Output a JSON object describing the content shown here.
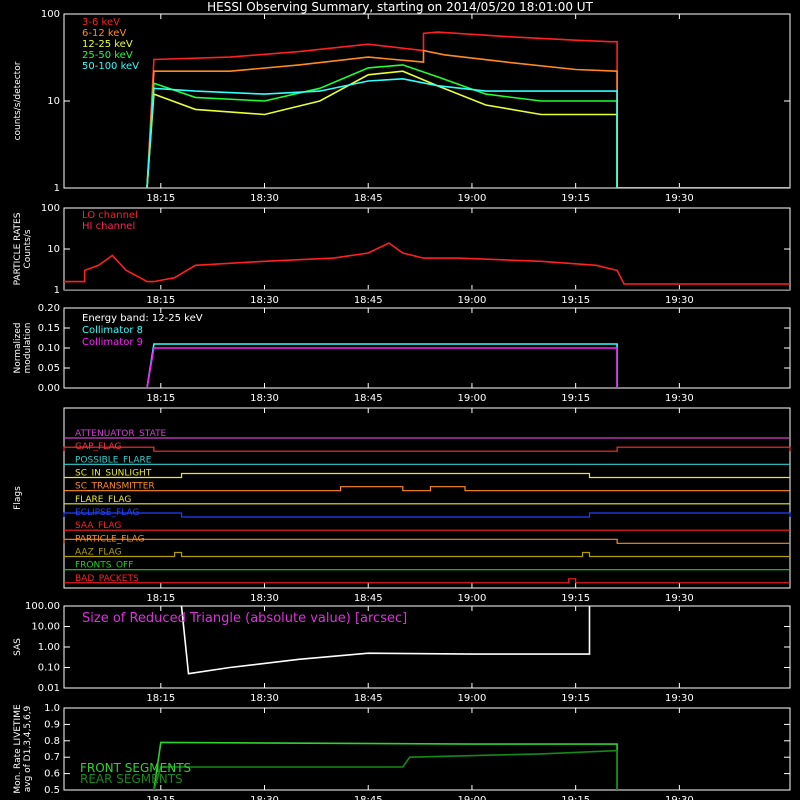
{
  "title": "HESSI Observing Summary, starting on 2014/05/20 18:01:00 UT",
  "time_axis": {
    "start": "18:01",
    "end": "19:46",
    "ticks": [
      "18:15",
      "18:30",
      "18:45",
      "19:00",
      "19:15",
      "19:30"
    ]
  },
  "chart_data": [
    {
      "id": "counts",
      "type": "line",
      "ylabel": "counts/s/detector",
      "yscale": "log",
      "ylim": [
        1,
        100
      ],
      "yticks": [
        "1",
        "10",
        "100"
      ],
      "series": [
        {
          "name": "3-6 keV",
          "color": "#ff2020",
          "x": [
            "18:13",
            "18:14",
            "18:25",
            "18:35",
            "18:45",
            "18:53",
            "18:53",
            "18:55",
            "19:05",
            "19:15",
            "19:20",
            "19:21",
            "19:21",
            "19:46"
          ],
          "y": [
            1,
            30,
            32,
            37,
            45,
            38,
            60,
            62,
            55,
            50,
            48,
            48,
            1,
            1
          ]
        },
        {
          "name": "6-12 keV",
          "color": "#ff8a20",
          "x": [
            "18:13",
            "18:14",
            "18:25",
            "18:35",
            "18:45",
            "18:53",
            "18:53",
            "18:56",
            "19:05",
            "19:15",
            "19:21",
            "19:21",
            "19:46"
          ],
          "y": [
            1,
            22,
            22,
            26,
            32,
            28,
            38,
            34,
            28,
            23,
            22,
            1,
            1
          ]
        },
        {
          "name": "12-25 keV",
          "color": "#e8ff30",
          "x": [
            "18:13",
            "18:14",
            "18:20",
            "18:30",
            "18:38",
            "18:45",
            "18:50",
            "18:55",
            "19:02",
            "19:10",
            "19:18",
            "19:21",
            "19:21",
            "19:46"
          ],
          "y": [
            1,
            12,
            8,
            7,
            10,
            20,
            22,
            15,
            9,
            7,
            7,
            7,
            1,
            1
          ]
        },
        {
          "name": "25-50 keV",
          "color": "#20ff30",
          "x": [
            "18:13",
            "18:14",
            "18:20",
            "18:30",
            "18:38",
            "18:45",
            "18:50",
            "18:55",
            "19:02",
            "19:10",
            "19:18",
            "19:21",
            "19:21",
            "19:46"
          ],
          "y": [
            1,
            16,
            11,
            10,
            14,
            24,
            26,
            19,
            12,
            10,
            10,
            10,
            1,
            1
          ]
        },
        {
          "name": "50-100 keV",
          "color": "#30ffff",
          "x": [
            "18:13",
            "18:14",
            "18:20",
            "18:30",
            "18:38",
            "18:45",
            "18:50",
            "18:55",
            "19:02",
            "19:10",
            "19:18",
            "19:21",
            "19:21",
            "19:46"
          ],
          "y": [
            1,
            14,
            13,
            12,
            13,
            17,
            18,
            15,
            13,
            13,
            13,
            13,
            1,
            1
          ]
        }
      ]
    },
    {
      "id": "particle",
      "type": "line",
      "ylabel": "PARTICLE RATES\nCounts/s",
      "yscale": "log",
      "ylim": [
        1,
        100
      ],
      "yticks": [
        "1",
        "10",
        "100"
      ],
      "series": [
        {
          "name": "LO channel",
          "color": "#ff2020",
          "x": [
            "18:01",
            "18:04",
            "18:04",
            "18:06",
            "18:08",
            "18:10",
            "18:12",
            "18:13",
            "18:14",
            "18:17",
            "18:20",
            "18:30",
            "18:40",
            "18:45",
            "18:48",
            "18:50",
            "18:53",
            "18:58",
            "19:10",
            "19:18",
            "19:21",
            "19:22",
            "19:46"
          ],
          "y": [
            1.6,
            1.6,
            3,
            4,
            7,
            3,
            2,
            1.6,
            1.6,
            2,
            4,
            5,
            6,
            8,
            14,
            8,
            6,
            6,
            5,
            4,
            3,
            1.4,
            1.4
          ]
        },
        {
          "name": "HI channel",
          "color": "#ff2060",
          "x": [
            "18:01",
            "19:46"
          ],
          "y": [
            1,
            1
          ]
        }
      ]
    },
    {
      "id": "modulation",
      "type": "line",
      "ylabel": "Normalized\nmodulation",
      "ylim": [
        0,
        0.2
      ],
      "yticks": [
        "0.00",
        "0.05",
        "0.10",
        "0.15",
        "0.20"
      ],
      "annotation": "Energy band: 12-25 keV",
      "series": [
        {
          "name": "Collimator 8",
          "color": "#30ffff",
          "x": [
            "18:13",
            "18:14",
            "19:21",
            "19:21"
          ],
          "y": [
            0,
            0.11,
            0.11,
            0
          ]
        },
        {
          "name": "Collimator 9",
          "color": "#ff20ff",
          "x": [
            "18:13",
            "18:14",
            "19:21",
            "19:21"
          ],
          "y": [
            0,
            0.1,
            0.1,
            0
          ]
        }
      ]
    },
    {
      "id": "sas",
      "type": "line",
      "ylabel": "SAS",
      "yscale": "log",
      "ylim": [
        0.01,
        100
      ],
      "yticks": [
        "0.01",
        "0.10",
        "1.00",
        "10.00",
        "100.00"
      ],
      "annotation": "Size of Reduced Triangle (absolute value) [arcsec]",
      "series": [
        {
          "name": "",
          "color": "#ffffff",
          "x": [
            "18:18",
            "18:19",
            "18:25",
            "18:35",
            "18:45",
            "19:00",
            "19:10",
            "19:17",
            "19:17"
          ],
          "y": [
            100,
            0.05,
            0.1,
            0.25,
            0.5,
            0.45,
            0.45,
            0.45,
            100
          ]
        }
      ]
    },
    {
      "id": "livetime",
      "type": "line",
      "ylabel": "Mon. Rate LIVETIME\navg of D1,3,4,5,6,9",
      "ylim": [
        0.5,
        1.0
      ],
      "yticks": [
        "0.5",
        "0.6",
        "0.7",
        "0.8",
        "0.9",
        "1.0"
      ],
      "series": [
        {
          "name": "FRONT SEGMENTS",
          "color": "#2ed22e",
          "x": [
            "18:14",
            "18:15",
            "19:00",
            "19:21",
            "19:21"
          ],
          "y": [
            0.5,
            0.79,
            0.78,
            0.78,
            0.5
          ]
        },
        {
          "name": "REAR SEGMENTS",
          "color": "#168a16",
          "x": [
            "18:14",
            "18:15",
            "18:50",
            "18:51",
            "19:10",
            "19:21",
            "19:21"
          ],
          "y": [
            0.5,
            0.64,
            0.64,
            0.7,
            0.72,
            0.74,
            0.5
          ]
        }
      ]
    }
  ],
  "flags": {
    "ylabel": "Flags",
    "rows": [
      {
        "name": "ATTENUATOR_STATE",
        "color": "#d040d0",
        "segments": []
      },
      {
        "name": "GAP_FLAG",
        "color": "#ff3030",
        "segments": [
          [
            "18:01",
            "18:14"
          ],
          [
            "19:21",
            "19:46"
          ]
        ]
      },
      {
        "name": "POSSIBLE_FLARE",
        "color": "#30d0d0",
        "segments": []
      },
      {
        "name": "SC_IN_SUNLIGHT",
        "color": "#e8e830",
        "segments": [
          [
            "18:18",
            "19:17"
          ]
        ]
      },
      {
        "name": "SC_TRANSMITTER",
        "color": "#ff8a20",
        "segments": [
          [
            "18:41",
            "18:50"
          ],
          [
            "18:54",
            "18:59"
          ]
        ]
      },
      {
        "name": "FLARE_FLAG",
        "color": "#e8e830",
        "segments": []
      },
      {
        "name": "ECLIPSE_FLAG",
        "color": "#2040ff",
        "segments": [
          [
            "18:01",
            "18:18"
          ],
          [
            "19:17",
            "19:46"
          ]
        ]
      },
      {
        "name": "SAA_FLAG",
        "color": "#ff2020",
        "segments": []
      },
      {
        "name": "PARTICLE_FLAG",
        "color": "#ff8a20",
        "segments": [
          [
            "18:01",
            "19:21"
          ]
        ]
      },
      {
        "name": "AAZ_FLAG",
        "color": "#b0a000",
        "segments": [
          [
            "18:17",
            "18:18"
          ],
          [
            "19:16",
            "19:17"
          ]
        ]
      },
      {
        "name": "FRONTS_OFF",
        "color": "#20d020",
        "segments": []
      },
      {
        "name": "BAD_PACKETS",
        "color": "#ff2020",
        "segments": [
          [
            "19:14",
            "19:15"
          ]
        ]
      }
    ]
  }
}
